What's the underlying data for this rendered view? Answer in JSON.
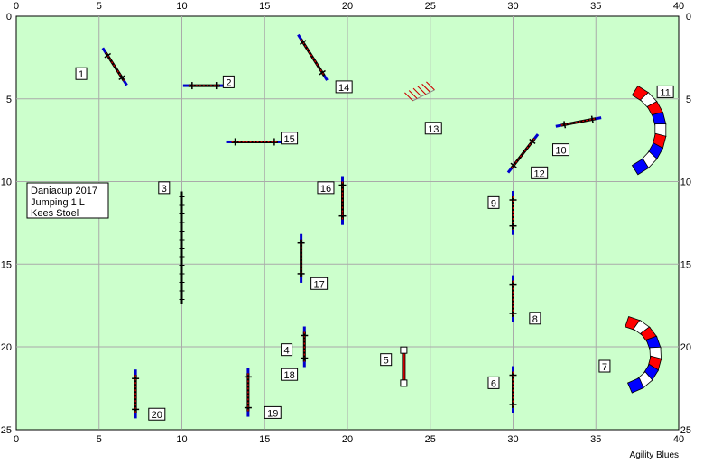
{
  "colors": {
    "field": "#ccffcc",
    "grid": "#aaaaaa",
    "pole_red": "#cc0000",
    "wing_blue": "#0000cc",
    "tunnel_red": "#ff0000",
    "tunnel_blue": "#0000ff"
  },
  "course_info": {
    "line1": "Daniacup 2017",
    "line2": "Jumping 1 L",
    "line3": "Kees Stoel"
  },
  "footer_text": "Agility Blues",
  "axes": {
    "x_ticks": [
      "0",
      "5",
      "10",
      "15",
      "20",
      "25",
      "30",
      "35",
      "40"
    ],
    "y_ticks": [
      "0",
      "5",
      "10",
      "15",
      "20",
      "25"
    ],
    "x_range": [
      0,
      40
    ],
    "y_range": [
      0,
      25
    ]
  },
  "obstacles": [
    {
      "num": "1",
      "type": "jump",
      "from": [
        5.4,
        2.2
      ],
      "to": [
        6.5,
        3.9
      ],
      "label_at": [
        3.6,
        3.5
      ]
    },
    {
      "num": "2",
      "type": "jump",
      "from": [
        10.4,
        4.2
      ],
      "to": [
        12.3,
        4.2
      ],
      "label_at": [
        12.5,
        4.0
      ]
    },
    {
      "num": "3",
      "type": "wall",
      "from": [
        10.0,
        10.6
      ],
      "to": [
        10.0,
        17.4
      ],
      "label_at": [
        8.6,
        10.4
      ]
    },
    {
      "num": "4",
      "type": "jump",
      "from": [
        17.4,
        19.1
      ],
      "to": [
        17.4,
        20.9
      ],
      "label_at": [
        16.0,
        20.2
      ]
    },
    {
      "num": "5",
      "type": "tire",
      "from": [
        23.4,
        20.2
      ],
      "to": [
        23.4,
        22.2
      ],
      "label_at": [
        22.0,
        20.8
      ]
    },
    {
      "num": "6",
      "type": "jump",
      "from": [
        30.0,
        21.5
      ],
      "to": [
        30.0,
        23.7
      ],
      "label_at": [
        28.5,
        22.2
      ]
    },
    {
      "num": "7",
      "type": "tunnel",
      "center": [
        36.6,
        20.5
      ],
      "radius": 2.0,
      "a0": -80,
      "a1": 75,
      "label_at": [
        35.2,
        21.2
      ]
    },
    {
      "num": "8",
      "type": "jump",
      "from": [
        30.0,
        16.0
      ],
      "to": [
        30.0,
        18.2
      ],
      "label_at": [
        31.0,
        18.3
      ]
    },
    {
      "num": "9",
      "type": "jump",
      "from": [
        30.0,
        10.9
      ],
      "to": [
        30.0,
        12.9
      ],
      "label_at": [
        28.5,
        11.3
      ]
    },
    {
      "num": "10",
      "type": "jump",
      "from": [
        32.9,
        6.6
      ],
      "to": [
        35.0,
        6.2
      ],
      "label_at": [
        32.4,
        8.1
      ]
    },
    {
      "num": "11",
      "type": "tunnel",
      "center": [
        36.3,
        6.9
      ],
      "radius": 2.6,
      "a0": -65,
      "a1": 65,
      "label_at": [
        38.7,
        4.6
      ]
    },
    {
      "num": "12",
      "type": "jump",
      "from": [
        29.9,
        9.2
      ],
      "to": [
        31.3,
        7.4
      ],
      "label_at": [
        31.1,
        9.5
      ]
    },
    {
      "num": "13",
      "type": "weave",
      "center": [
        24.6,
        4.9
      ],
      "label_at": [
        24.7,
        6.8
      ]
    },
    {
      "num": "14",
      "type": "jump",
      "from": [
        17.2,
        1.4
      ],
      "to": [
        18.6,
        3.6
      ],
      "label_at": [
        19.3,
        4.3
      ]
    },
    {
      "num": "15",
      "type": "jump",
      "from": [
        13.0,
        7.6
      ],
      "to": [
        15.8,
        7.6
      ],
      "label_at": [
        16.0,
        7.4
      ]
    },
    {
      "num": "16",
      "type": "jump",
      "from": [
        19.7,
        10.0
      ],
      "to": [
        19.7,
        12.3
      ],
      "label_at": [
        18.2,
        10.4
      ]
    },
    {
      "num": "17",
      "type": "jump",
      "from": [
        17.2,
        13.5
      ],
      "to": [
        17.2,
        15.8
      ],
      "label_at": [
        17.8,
        16.2
      ]
    },
    {
      "num": "18",
      "type": "label",
      "label_at": [
        16.0,
        21.7
      ]
    },
    {
      "num": "19",
      "type": "jump",
      "from": [
        14.0,
        21.6
      ],
      "to": [
        14.0,
        23.9
      ],
      "label_at": [
        15.0,
        24.0
      ]
    },
    {
      "num": "20",
      "type": "jump",
      "from": [
        7.2,
        21.7
      ],
      "to": [
        7.2,
        24.0
      ],
      "label_at": [
        8.0,
        24.1
      ]
    }
  ]
}
